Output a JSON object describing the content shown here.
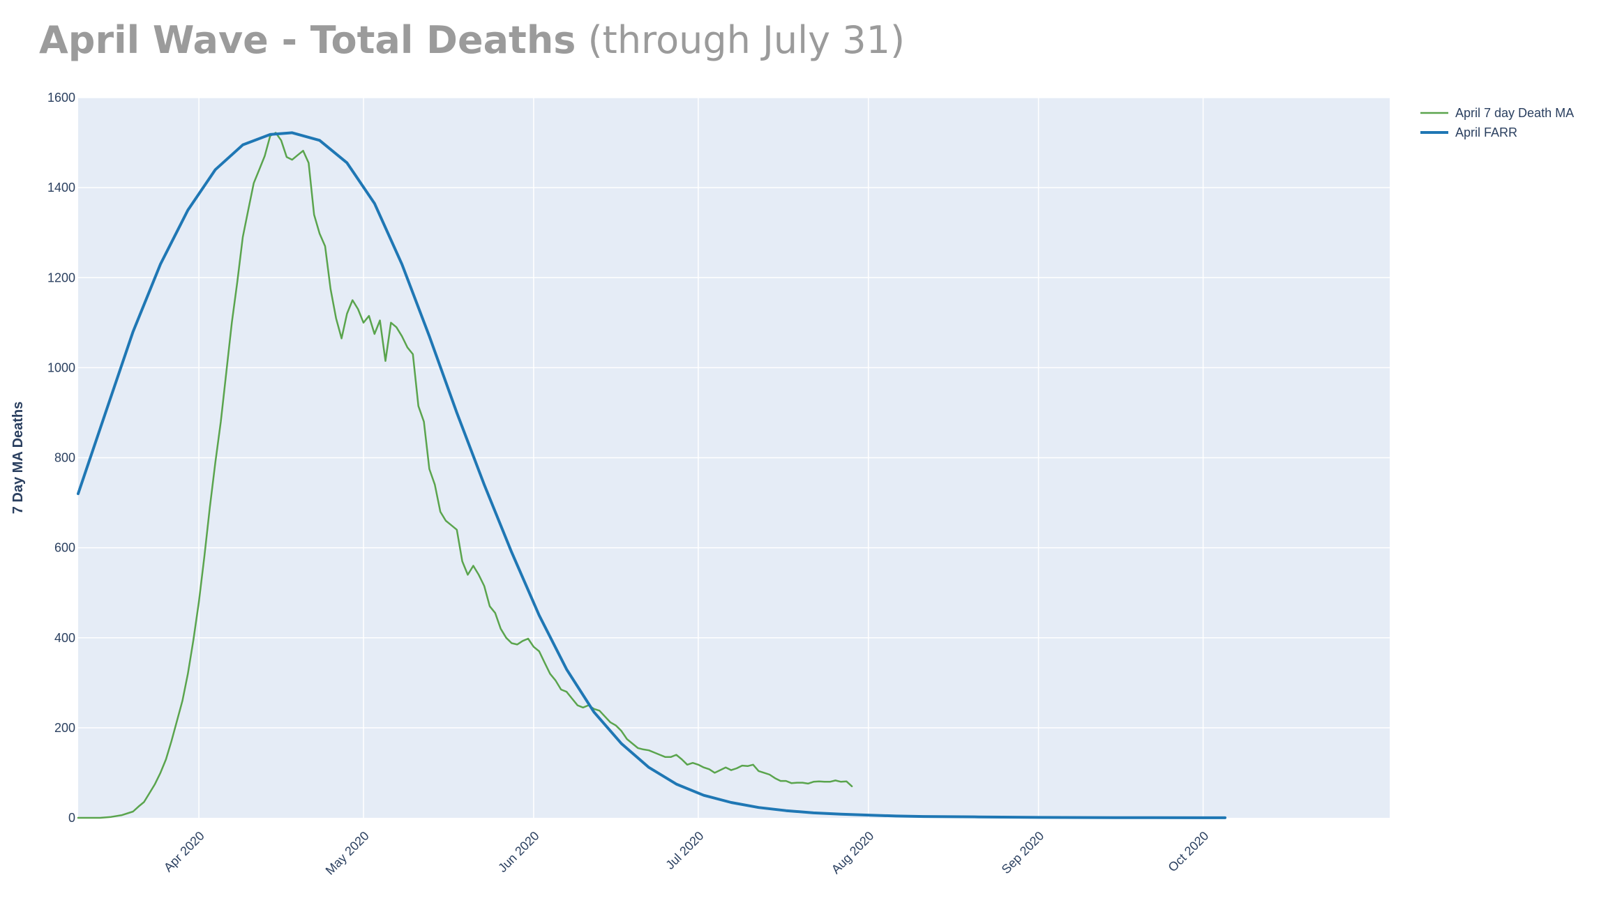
{
  "header": {
    "title_main": "April Wave - Total Deaths",
    "title_sub": "(through July 31)"
  },
  "colors": {
    "plot_bg": "#e5ecf6",
    "grid": "#ffffff",
    "ma_line": "#5aa44d",
    "farr_line": "#1f77b4",
    "text": "#2a3f5f",
    "title": "#9b9b9b"
  },
  "chart_data": {
    "type": "line",
    "title": "April Wave - Total Deaths (through July 31)",
    "ylabel": "7 Day MA Deaths",
    "xlabel": "",
    "xlim": [
      "2020-03-10",
      "2020-11-04"
    ],
    "ylim": [
      0,
      1600
    ],
    "grid": true,
    "legend_position": "top-right",
    "x_ticks": [
      {
        "date": "2020-04-01",
        "label": "Apr 2020"
      },
      {
        "date": "2020-05-01",
        "label": "May 2020"
      },
      {
        "date": "2020-06-01",
        "label": "Jun 2020"
      },
      {
        "date": "2020-07-01",
        "label": "Jul 2020"
      },
      {
        "date": "2020-08-01",
        "label": "Aug 2020"
      },
      {
        "date": "2020-09-01",
        "label": "Sep 2020"
      },
      {
        "date": "2020-10-01",
        "label": "Oct 2020"
      }
    ],
    "y_ticks": [
      0,
      200,
      400,
      600,
      800,
      1000,
      1200,
      1400,
      1600
    ],
    "series": [
      {
        "name": "April 7 day Death MA",
        "color": "#5aa44d",
        "points": [
          [
            "2020-03-10",
            0
          ],
          [
            "2020-03-14",
            0
          ],
          [
            "2020-03-16",
            2
          ],
          [
            "2020-03-18",
            6
          ],
          [
            "2020-03-20",
            14
          ],
          [
            "2020-03-21",
            25
          ],
          [
            "2020-03-22",
            35
          ],
          [
            "2020-03-23",
            55
          ],
          [
            "2020-03-24",
            75
          ],
          [
            "2020-03-25",
            100
          ],
          [
            "2020-03-26",
            130
          ],
          [
            "2020-03-27",
            170
          ],
          [
            "2020-03-28",
            215
          ],
          [
            "2020-03-29",
            260
          ],
          [
            "2020-03-30",
            320
          ],
          [
            "2020-03-31",
            395
          ],
          [
            "2020-04-01",
            480
          ],
          [
            "2020-04-02",
            580
          ],
          [
            "2020-04-03",
            690
          ],
          [
            "2020-04-04",
            790
          ],
          [
            "2020-04-05",
            880
          ],
          [
            "2020-04-06",
            990
          ],
          [
            "2020-04-07",
            1100
          ],
          [
            "2020-04-08",
            1190
          ],
          [
            "2020-04-09",
            1290
          ],
          [
            "2020-04-10",
            1350
          ],
          [
            "2020-04-11",
            1410
          ],
          [
            "2020-04-12",
            1440
          ],
          [
            "2020-04-13",
            1470
          ],
          [
            "2020-04-14",
            1515
          ],
          [
            "2020-04-15",
            1522
          ],
          [
            "2020-04-16",
            1505
          ],
          [
            "2020-04-17",
            1468
          ],
          [
            "2020-04-18",
            1462
          ],
          [
            "2020-04-19",
            1472
          ],
          [
            "2020-04-20",
            1482
          ],
          [
            "2020-04-21",
            1455
          ],
          [
            "2020-04-22",
            1340
          ],
          [
            "2020-04-23",
            1298
          ],
          [
            "2020-04-24",
            1270
          ],
          [
            "2020-04-25",
            1175
          ],
          [
            "2020-04-26",
            1110
          ],
          [
            "2020-04-27",
            1065
          ],
          [
            "2020-04-28",
            1120
          ],
          [
            "2020-04-29",
            1150
          ],
          [
            "2020-04-30",
            1130
          ],
          [
            "2020-05-01",
            1100
          ],
          [
            "2020-05-02",
            1115
          ],
          [
            "2020-05-03",
            1075
          ],
          [
            "2020-05-04",
            1105
          ],
          [
            "2020-05-05",
            1015
          ],
          [
            "2020-05-06",
            1100
          ],
          [
            "2020-05-07",
            1090
          ],
          [
            "2020-05-08",
            1070
          ],
          [
            "2020-05-09",
            1045
          ],
          [
            "2020-05-10",
            1030
          ],
          [
            "2020-05-11",
            915
          ],
          [
            "2020-05-12",
            880
          ],
          [
            "2020-05-13",
            775
          ],
          [
            "2020-05-14",
            740
          ],
          [
            "2020-05-15",
            680
          ],
          [
            "2020-05-16",
            660
          ],
          [
            "2020-05-17",
            650
          ],
          [
            "2020-05-18",
            640
          ],
          [
            "2020-05-19",
            570
          ],
          [
            "2020-05-20",
            540
          ],
          [
            "2020-05-21",
            560
          ],
          [
            "2020-05-22",
            540
          ],
          [
            "2020-05-23",
            515
          ],
          [
            "2020-05-24",
            470
          ],
          [
            "2020-05-25",
            455
          ],
          [
            "2020-05-26",
            420
          ],
          [
            "2020-05-27",
            400
          ],
          [
            "2020-05-28",
            388
          ],
          [
            "2020-05-29",
            385
          ],
          [
            "2020-05-30",
            393
          ],
          [
            "2020-05-31",
            398
          ],
          [
            "2020-06-01",
            380
          ],
          [
            "2020-06-02",
            370
          ],
          [
            "2020-06-03",
            345
          ],
          [
            "2020-06-04",
            320
          ],
          [
            "2020-06-05",
            305
          ],
          [
            "2020-06-06",
            285
          ],
          [
            "2020-06-07",
            280
          ],
          [
            "2020-06-08",
            265
          ],
          [
            "2020-06-09",
            250
          ],
          [
            "2020-06-10",
            245
          ],
          [
            "2020-06-11",
            250
          ],
          [
            "2020-06-12",
            242
          ],
          [
            "2020-06-13",
            238
          ],
          [
            "2020-06-14",
            225
          ],
          [
            "2020-06-15",
            212
          ],
          [
            "2020-06-16",
            205
          ],
          [
            "2020-06-17",
            193
          ],
          [
            "2020-06-18",
            175
          ],
          [
            "2020-06-19",
            165
          ],
          [
            "2020-06-20",
            155
          ],
          [
            "2020-06-21",
            152
          ],
          [
            "2020-06-22",
            150
          ],
          [
            "2020-06-23",
            145
          ],
          [
            "2020-06-24",
            140
          ],
          [
            "2020-06-25",
            135
          ],
          [
            "2020-06-26",
            135
          ],
          [
            "2020-06-27",
            140
          ],
          [
            "2020-06-28",
            130
          ],
          [
            "2020-06-29",
            118
          ],
          [
            "2020-06-30",
            122
          ],
          [
            "2020-07-01",
            118
          ],
          [
            "2020-07-02",
            112
          ],
          [
            "2020-07-03",
            108
          ],
          [
            "2020-07-04",
            100
          ],
          [
            "2020-07-05",
            106
          ],
          [
            "2020-07-06",
            112
          ],
          [
            "2020-07-07",
            106
          ],
          [
            "2020-07-08",
            110
          ],
          [
            "2020-07-09",
            116
          ],
          [
            "2020-07-10",
            115
          ],
          [
            "2020-07-11",
            118
          ],
          [
            "2020-07-12",
            104
          ],
          [
            "2020-07-13",
            100
          ],
          [
            "2020-07-14",
            96
          ],
          [
            "2020-07-15",
            88
          ],
          [
            "2020-07-16",
            82
          ],
          [
            "2020-07-17",
            82
          ],
          [
            "2020-07-18",
            77
          ],
          [
            "2020-07-19",
            78
          ],
          [
            "2020-07-20",
            78
          ],
          [
            "2020-07-21",
            76
          ],
          [
            "2020-07-22",
            80
          ],
          [
            "2020-07-23",
            81
          ],
          [
            "2020-07-24",
            80
          ],
          [
            "2020-07-25",
            80
          ],
          [
            "2020-07-26",
            83
          ],
          [
            "2020-07-27",
            80
          ],
          [
            "2020-07-28",
            81
          ],
          [
            "2020-07-29",
            70
          ]
        ]
      },
      {
        "name": "April FARR",
        "color": "#1f77b4",
        "points": [
          [
            "2020-03-10",
            720
          ],
          [
            "2020-03-15",
            900
          ],
          [
            "2020-03-20",
            1080
          ],
          [
            "2020-03-25",
            1230
          ],
          [
            "2020-03-30",
            1350
          ],
          [
            "2020-04-04",
            1440
          ],
          [
            "2020-04-09",
            1495
          ],
          [
            "2020-04-14",
            1518
          ],
          [
            "2020-04-18",
            1522
          ],
          [
            "2020-04-23",
            1505
          ],
          [
            "2020-04-28",
            1455
          ],
          [
            "2020-05-03",
            1365
          ],
          [
            "2020-05-08",
            1230
          ],
          [
            "2020-05-13",
            1070
          ],
          [
            "2020-05-18",
            900
          ],
          [
            "2020-05-23",
            740
          ],
          [
            "2020-05-28",
            590
          ],
          [
            "2020-06-02",
            450
          ],
          [
            "2020-06-07",
            330
          ],
          [
            "2020-06-12",
            235
          ],
          [
            "2020-06-17",
            165
          ],
          [
            "2020-06-22",
            112
          ],
          [
            "2020-06-27",
            75
          ],
          [
            "2020-07-02",
            50
          ],
          [
            "2020-07-07",
            34
          ],
          [
            "2020-07-12",
            23
          ],
          [
            "2020-07-17",
            16
          ],
          [
            "2020-07-22",
            11
          ],
          [
            "2020-07-27",
            8
          ],
          [
            "2020-08-01",
            6
          ],
          [
            "2020-08-06",
            4
          ],
          [
            "2020-08-11",
            3
          ],
          [
            "2020-08-21",
            2
          ],
          [
            "2020-09-01",
            1
          ],
          [
            "2020-09-15",
            0.5
          ],
          [
            "2020-10-01",
            0.2
          ],
          [
            "2020-10-05",
            0.1
          ]
        ]
      }
    ]
  }
}
